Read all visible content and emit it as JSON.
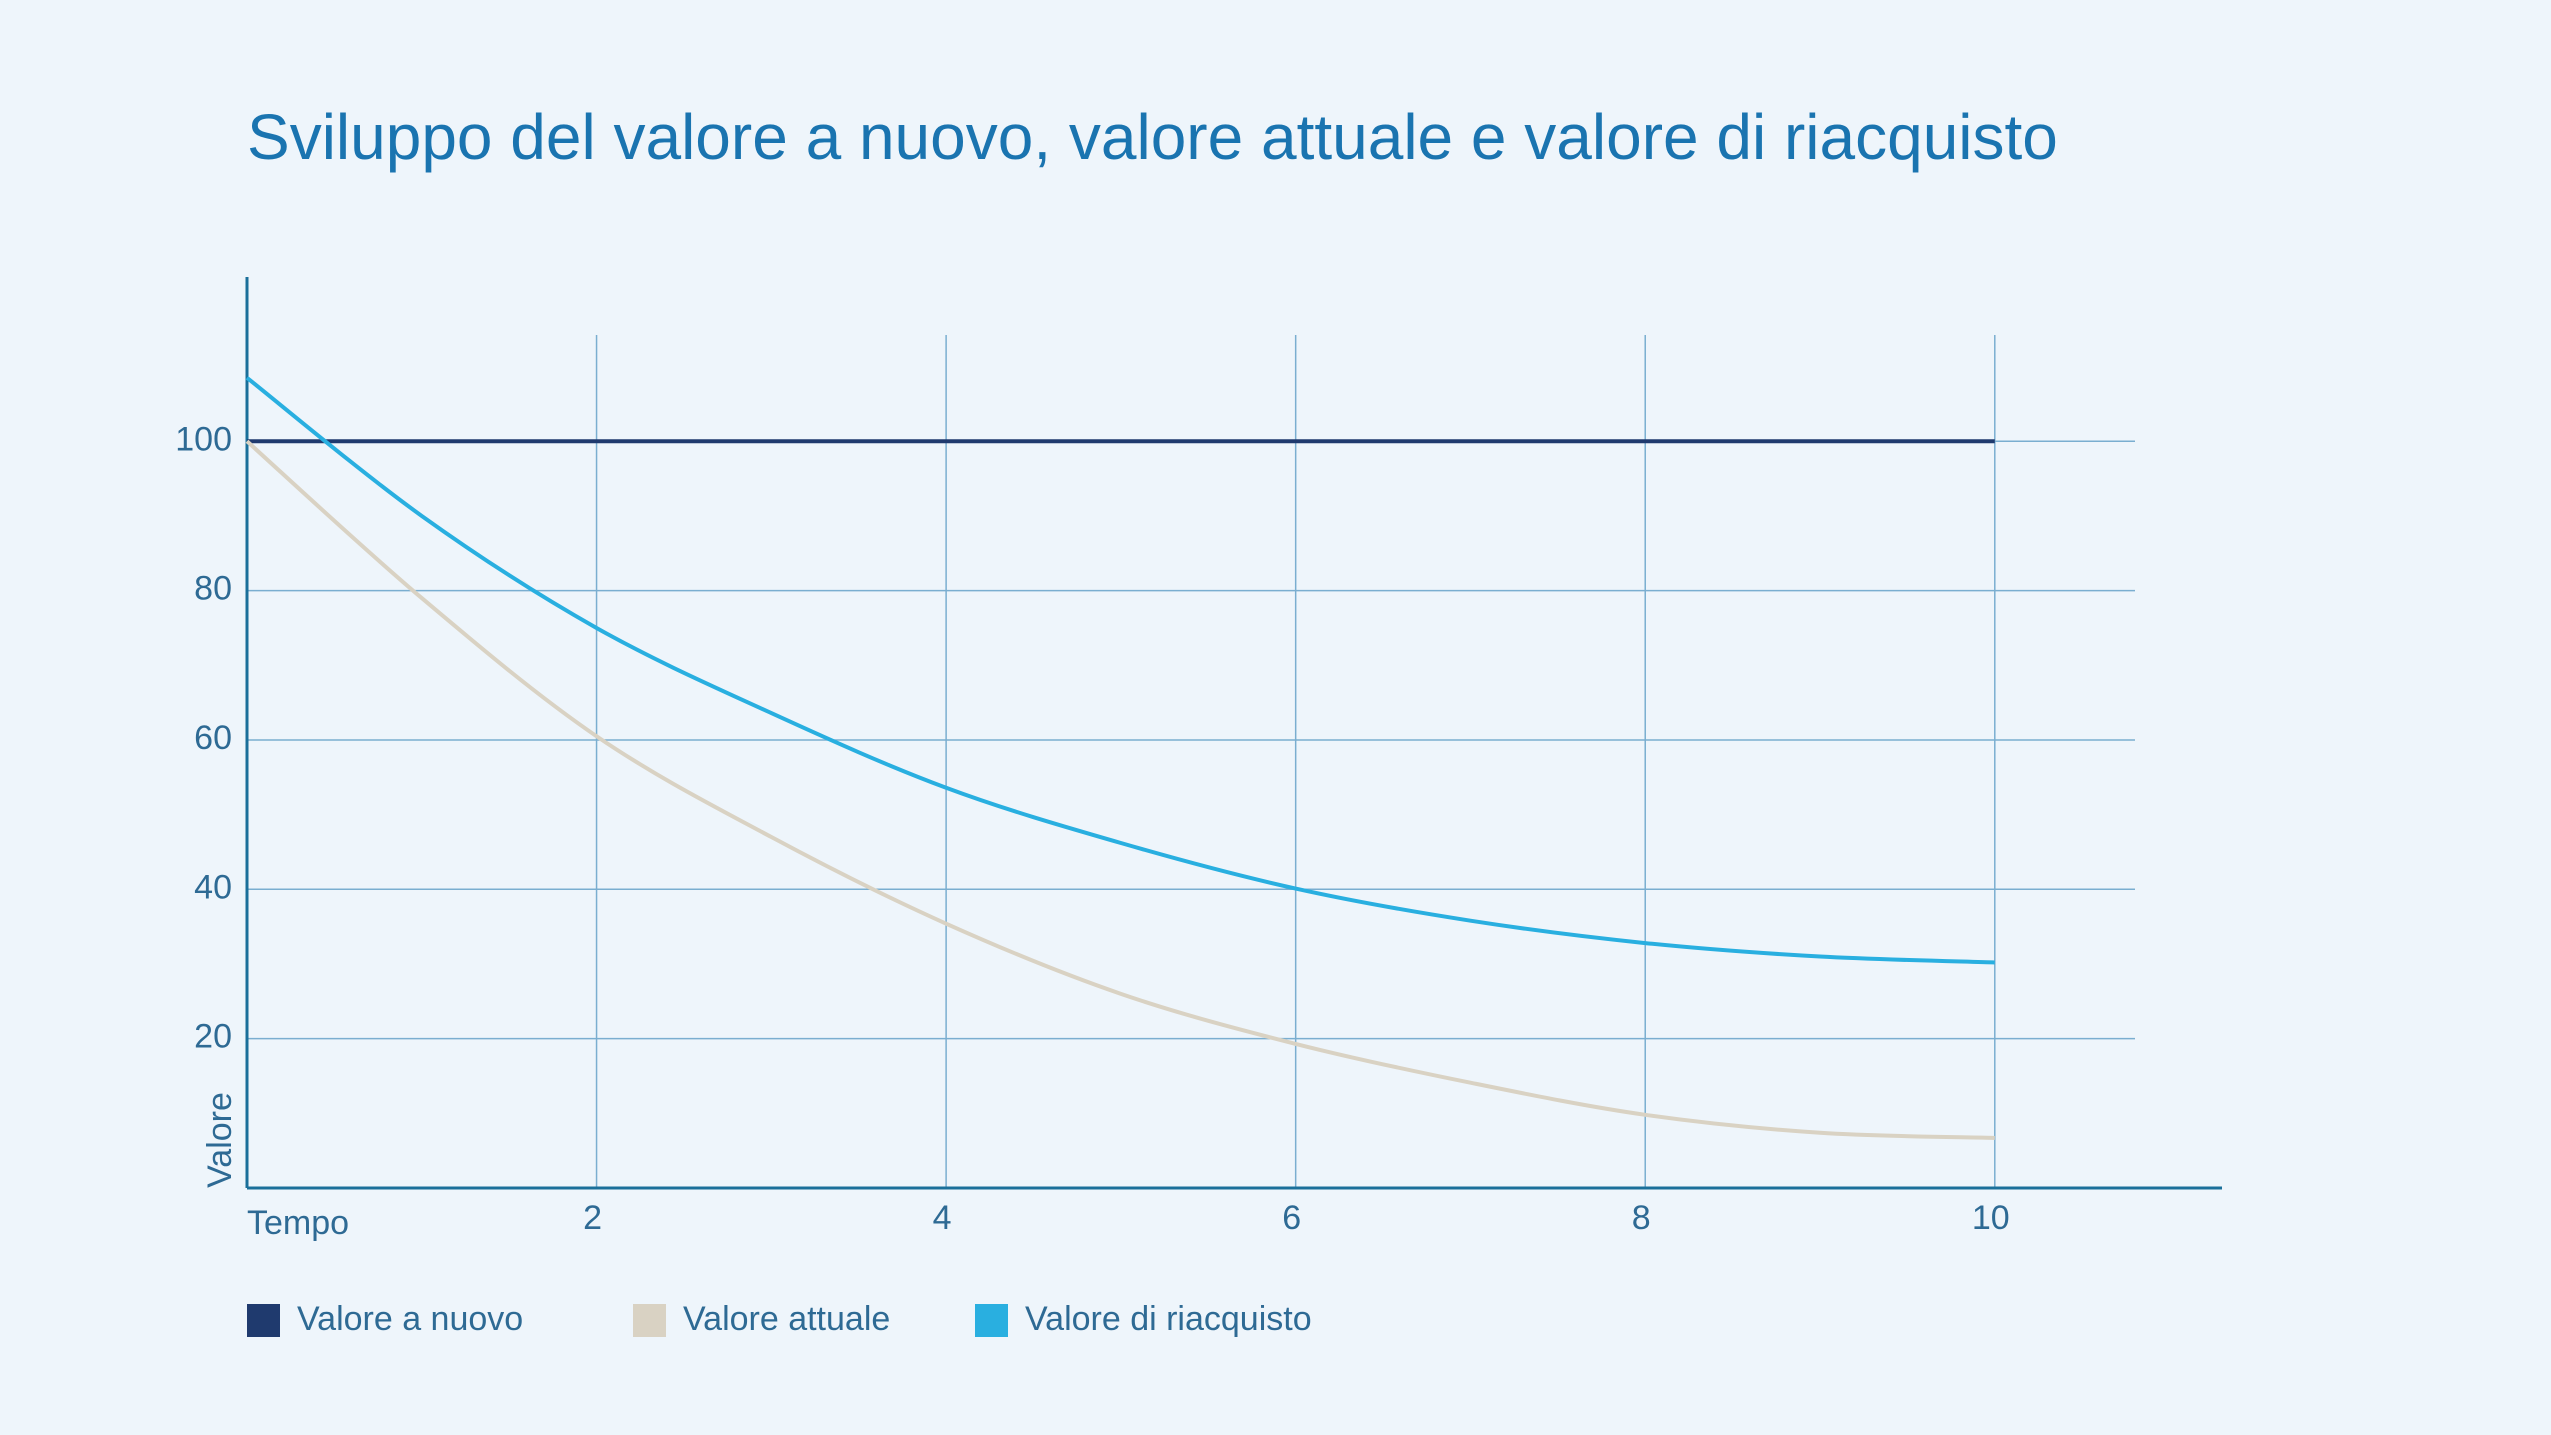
{
  "chart_data": {
    "type": "line",
    "title": "Sviluppo del valore a nuovo, valore attuale e valore di riacquisto",
    "x_label": "Tempo",
    "y_label": "Valore",
    "x": [
      0,
      1,
      2,
      3,
      4,
      5,
      6,
      7,
      8,
      9,
      10
    ],
    "series": [
      {
        "name": "Valore a nuovo",
        "color": "#1f3a6e",
        "values": [
          100,
          100,
          100,
          100,
          100,
          100,
          100,
          100,
          100,
          100,
          100
        ]
      },
      {
        "name": "Valore attuale",
        "color": "#d9d2c3",
        "values": [
          100,
          79,
          60.5,
          47,
          35.4,
          26,
          19.3,
          14.1,
          9.8,
          7.4,
          6.7
        ]
      },
      {
        "name": "Valore di riacquisto",
        "color": "#29afe0",
        "values": [
          108.5,
          90,
          75,
          63.6,
          53.6,
          46.2,
          40.1,
          35.8,
          32.8,
          31,
          30.2
        ]
      }
    ],
    "xlim": [
      0,
      11.3
    ],
    "ylim": [
      0,
      122
    ],
    "xticks": [
      2,
      4,
      6,
      8,
      10
    ],
    "yticks": [
      20,
      40,
      60,
      80,
      100
    ],
    "grid": true,
    "legend": "bottom"
  }
}
